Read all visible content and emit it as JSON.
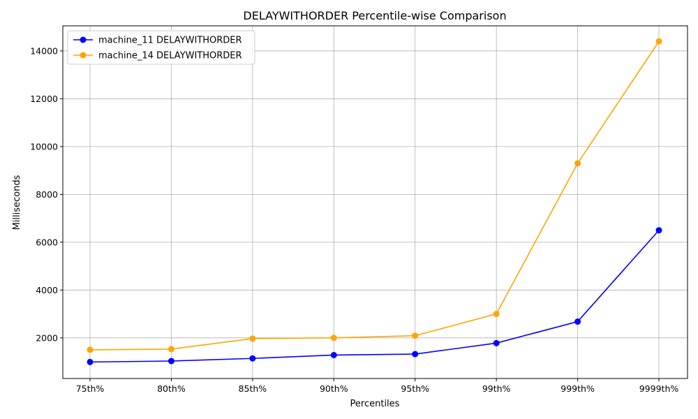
{
  "chart_data": {
    "type": "line",
    "title": "DELAYWITHORDER Percentile-wise Comparison",
    "xlabel": "Percentiles",
    "ylabel": "Milliseconds",
    "categories": [
      "75th%",
      "80th%",
      "85th%",
      "90th%",
      "95th%",
      "99th%",
      "999th%",
      "9999th%"
    ],
    "ylim": [
      300,
      15050
    ],
    "yticks": [
      2000,
      4000,
      6000,
      8000,
      10000,
      12000,
      14000
    ],
    "grid": true,
    "legend_position": "top-left",
    "series": [
      {
        "name": "machine_11 DELAYWITHORDER",
        "color": "#0000ff",
        "marker": "circle",
        "values": [
          990,
          1030,
          1140,
          1280,
          1320,
          1780,
          2680,
          6500
        ]
      },
      {
        "name": "machine_14 DELAYWITHORDER",
        "color": "#ffa500",
        "marker": "circle",
        "values": [
          1500,
          1530,
          1970,
          2000,
          2090,
          3000,
          9300,
          14400
        ]
      }
    ]
  }
}
